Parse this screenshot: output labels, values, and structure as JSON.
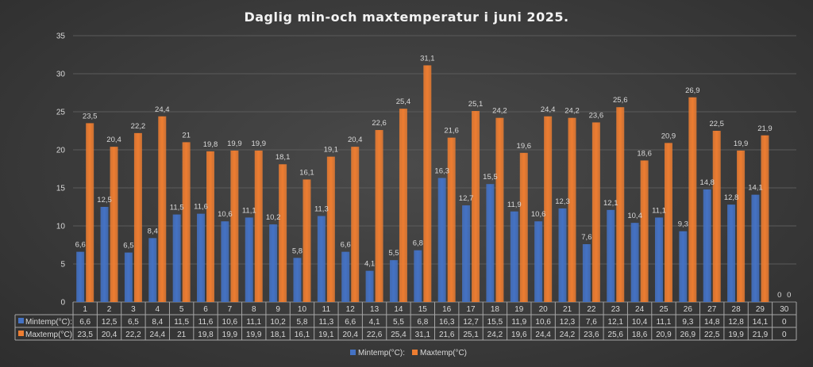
{
  "chart_data": {
    "type": "bar",
    "title": "Daglig min-och maxtemperatur i juni 2025.",
    "categories": [
      "1",
      "2",
      "3",
      "4",
      "5",
      "6",
      "7",
      "8",
      "9",
      "10",
      "11",
      "12",
      "13",
      "14",
      "15",
      "16",
      "17",
      "18",
      "19",
      "20",
      "21",
      "22",
      "23",
      "24",
      "25",
      "26",
      "27",
      "28",
      "29",
      "30"
    ],
    "series": [
      {
        "name": "Mintemp(°C):",
        "color": "#4472c4",
        "values": [
          6.6,
          12.5,
          6.5,
          8.4,
          11.5,
          11.6,
          10.6,
          11.1,
          10.2,
          5.8,
          11.3,
          6.6,
          4.1,
          5.5,
          6.8,
          16.3,
          12.7,
          15.5,
          11.9,
          10.6,
          12.3,
          7.6,
          12.1,
          10.4,
          11.1,
          9.3,
          14.8,
          12.8,
          14.1,
          0
        ],
        "labels": [
          "6,6",
          "12,5",
          "6,5",
          "8,4",
          "11,5",
          "11,6",
          "10,6",
          "11,1",
          "10,2",
          "5,8",
          "11,3",
          "6,6",
          "4,1",
          "5,5",
          "6,8",
          "16,3",
          "12,7",
          "15,5",
          "11,9",
          "10,6",
          "12,3",
          "7,6",
          "12,1",
          "10,4",
          "11,1",
          "9,3",
          "14,8",
          "12,8",
          "14,1",
          "0"
        ]
      },
      {
        "name": "Maxtemp(°C)",
        "color": "#ed7d31",
        "values": [
          23.5,
          20.4,
          22.2,
          24.4,
          21,
          19.8,
          19.9,
          19.9,
          18.1,
          16.1,
          19.1,
          20.4,
          22.6,
          25.4,
          31.1,
          21.6,
          25.1,
          24.2,
          19.6,
          24.4,
          24.2,
          23.6,
          25.6,
          18.6,
          20.9,
          26.9,
          22.5,
          19.9,
          21.9,
          0
        ],
        "labels": [
          "23,5",
          "20,4",
          "22,2",
          "24,4",
          "21",
          "19,8",
          "19,9",
          "19,9",
          "18,1",
          "16,1",
          "19,1",
          "20,4",
          "22,6",
          "25,4",
          "31,1",
          "21,6",
          "25,1",
          "24,2",
          "19,6",
          "24,4",
          "24,2",
          "23,6",
          "25,6",
          "18,6",
          "20,9",
          "26,9",
          "22,5",
          "19,9",
          "21,9",
          "0"
        ]
      }
    ],
    "table_labels": [
      "Mintemp(°C):",
      "Maxtemp(°C)"
    ],
    "yticks": [
      "0",
      "5",
      "10",
      "15",
      "20",
      "25",
      "30",
      "35"
    ],
    "ylim": [
      0,
      35
    ],
    "grid": true,
    "legend": "bottom",
    "legend_entries": [
      "Mintemp(°C):",
      "Maxtemp(°C)"
    ]
  }
}
